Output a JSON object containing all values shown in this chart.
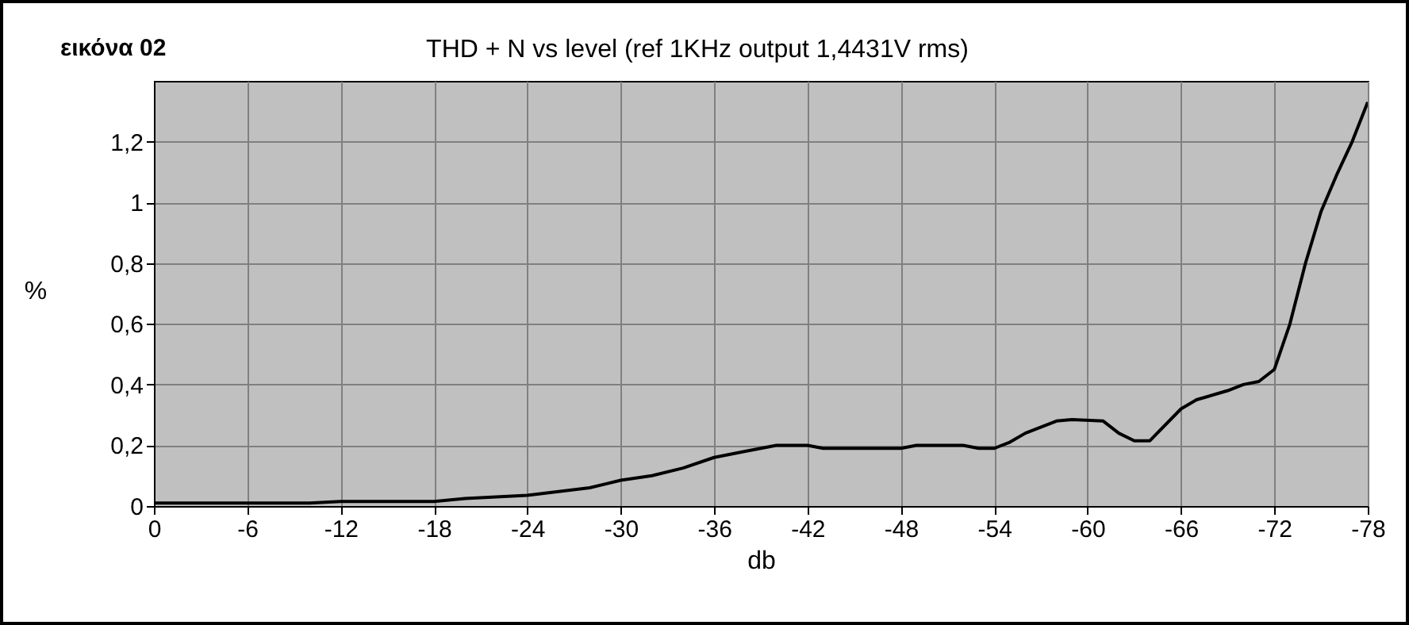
{
  "chart_data": {
    "type": "line",
    "title": "THD + N  vs  level  (ref 1KHz output 1,4431V rms)",
    "annotations": [
      "εικόνα 02"
    ],
    "xlabel": "db",
    "ylabel": "%",
    "x": [
      0,
      -10,
      -12,
      -18,
      -20,
      -24,
      -28,
      -30,
      -32,
      -34,
      -36,
      -38,
      -40,
      -42,
      -43,
      -48,
      -49,
      -52,
      -53,
      -54,
      -55,
      -56,
      -58,
      -59,
      -61,
      -62,
      -63,
      -64,
      -66,
      -67,
      -69,
      -70,
      -71,
      -72,
      -73,
      -74,
      -75,
      -76,
      -77,
      -78
    ],
    "series": [
      {
        "color": "#000000",
        "values": [
          0.01,
          0.01,
          0.015,
          0.015,
          0.025,
          0.035,
          0.06,
          0.085,
          0.1,
          0.125,
          0.16,
          0.18,
          0.2,
          0.2,
          0.19,
          0.19,
          0.2,
          0.2,
          0.19,
          0.19,
          0.21,
          0.24,
          0.28,
          0.285,
          0.28,
          0.24,
          0.215,
          0.215,
          0.32,
          0.35,
          0.38,
          0.4,
          0.41,
          0.45,
          0.6,
          0.8,
          0.97,
          1.09,
          1.2,
          1.33
        ]
      }
    ],
    "xlim": [
      0,
      -78
    ],
    "xticks": [
      0,
      -6,
      -12,
      -18,
      -24,
      -30,
      -36,
      -42,
      -48,
      -54,
      -60,
      -66,
      -72,
      -78
    ],
    "ylim": [
      0,
      1.4
    ],
    "yticks": [
      0,
      {
        "value": 0.2,
        "label": "0,2"
      },
      {
        "value": 0.4,
        "label": "0,4"
      },
      {
        "value": 0.6,
        "label": "0,6"
      },
      {
        "value": 0.8,
        "label": "0,8"
      },
      1,
      {
        "value": 1.2,
        "label": "1,2"
      }
    ],
    "grid": true,
    "line_style": "solid",
    "marker": "none"
  }
}
